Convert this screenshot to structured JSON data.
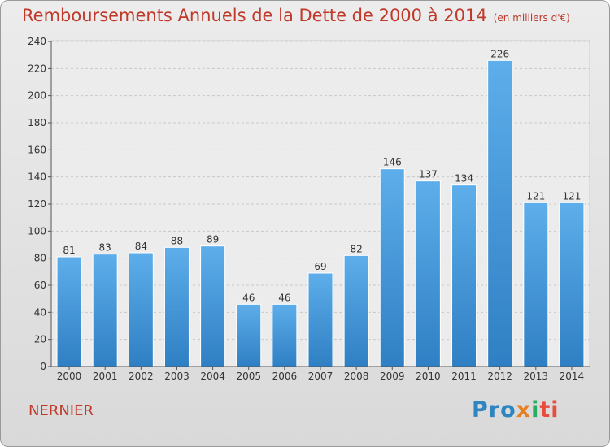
{
  "header": {
    "title": "Remboursements Annuels de la Dette de 2000 à 2014",
    "subtitle": "(en milliers d'€)"
  },
  "footer": {
    "commune": "NERNIER",
    "logo": {
      "part1": "Pro",
      "part2": "x",
      "part3": "i",
      "part4": "ti"
    }
  },
  "chart_data": {
    "type": "bar",
    "title": "Remboursements Annuels de la Dette de 2000 à 2014",
    "subtitle": "(en milliers d'€)",
    "categories": [
      "2000",
      "2001",
      "2002",
      "2003",
      "2004",
      "2005",
      "2006",
      "2007",
      "2008",
      "2009",
      "2010",
      "2011",
      "2012",
      "2013",
      "2014"
    ],
    "values": [
      81,
      83,
      84,
      88,
      89,
      46,
      46,
      69,
      82,
      146,
      137,
      134,
      226,
      121,
      121
    ],
    "ylim": [
      0,
      240
    ],
    "yticks": [
      0,
      20,
      40,
      60,
      80,
      100,
      120,
      140,
      160,
      180,
      200,
      220,
      240
    ],
    "grid": true,
    "bar_color": "#4a9fe0"
  }
}
